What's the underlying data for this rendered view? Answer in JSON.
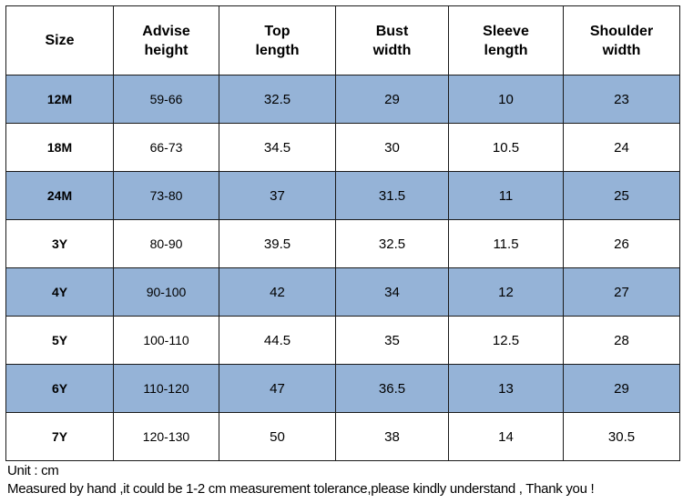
{
  "table": {
    "headers": [
      [
        "Size"
      ],
      [
        "Advise",
        "height"
      ],
      [
        "Top",
        "length"
      ],
      [
        "Bust",
        "width"
      ],
      [
        "Sleeve",
        "length"
      ],
      [
        "Shoulder",
        "width"
      ]
    ],
    "rows": [
      [
        "12M",
        "59-66",
        "32.5",
        "29",
        "10",
        "23"
      ],
      [
        "18M",
        "66-73",
        "34.5",
        "30",
        "10.5",
        "24"
      ],
      [
        "24M",
        "73-80",
        "37",
        "31.5",
        "11",
        "25"
      ],
      [
        "3Y",
        "80-90",
        "39.5",
        "32.5",
        "11.5",
        "26"
      ],
      [
        "4Y",
        "90-100",
        "42",
        "34",
        "12",
        "27"
      ],
      [
        "5Y",
        "100-110",
        "44.5",
        "35",
        "12.5",
        "28"
      ],
      [
        "6Y",
        "110-120",
        "47",
        "36.5",
        "13",
        "29"
      ],
      [
        "7Y",
        "120-130",
        "50",
        "38",
        "14",
        "30.5"
      ]
    ],
    "shaded_row_color": "#95b3d7"
  },
  "notes": {
    "unit": "Unit : cm",
    "tolerance": "Measured by hand ,it could be 1-2 cm measurement tolerance,please kindly understand , Thank you !"
  }
}
